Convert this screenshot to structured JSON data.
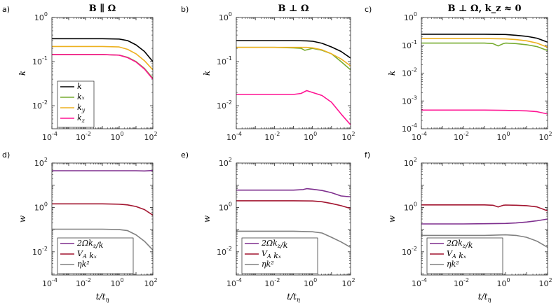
{
  "figure": {
    "xlabel": "t/t_η",
    "x_range": [
      0.0001,
      100
    ],
    "x_ticks": [
      "-4",
      "-2",
      "0",
      "2"
    ],
    "tick_base": "10"
  },
  "chart_data": [
    {
      "panel": "a)",
      "type": "line",
      "title": "B ∥ Ω",
      "ylabel": "k",
      "yscale": "log",
      "ylim": [
        0.003,
        1
      ],
      "y_ticks": [
        "-2",
        "-1",
        "0"
      ],
      "legend": "bottom-left",
      "series": [
        {
          "name": "k",
          "label": "k",
          "color": "#000000",
          "points": [
            [
              -4,
              0.33
            ],
            [
              -2,
              0.33
            ],
            [
              -1,
              0.33
            ],
            [
              0,
              0.325
            ],
            [
              0.5,
              0.3
            ],
            [
              1,
              0.24
            ],
            [
              1.5,
              0.17
            ],
            [
              2,
              0.1
            ]
          ]
        },
        {
          "name": "k_x",
          "label": "kₓ",
          "color": "#77ac30",
          "points": [
            [
              -4,
              0.145
            ],
            [
              -2,
              0.145
            ],
            [
              -1,
              0.145
            ],
            [
              0,
              0.14
            ],
            [
              0.5,
              0.125
            ],
            [
              1,
              0.1
            ],
            [
              1.5,
              0.07
            ],
            [
              2,
              0.042
            ]
          ]
        },
        {
          "name": "k_y",
          "label": "k_y",
          "color": "#edb120",
          "points": [
            [
              -4,
              0.22
            ],
            [
              -2,
              0.22
            ],
            [
              -1,
              0.22
            ],
            [
              0,
              0.215
            ],
            [
              0.5,
              0.19
            ],
            [
              1,
              0.15
            ],
            [
              1.5,
              0.105
            ],
            [
              2,
              0.065
            ]
          ]
        },
        {
          "name": "k_z",
          "label": "k_z",
          "color": "#ff1493",
          "points": [
            [
              -4,
              0.145
            ],
            [
              -2,
              0.145
            ],
            [
              -1,
              0.145
            ],
            [
              0,
              0.14
            ],
            [
              0.5,
              0.123
            ],
            [
              1,
              0.098
            ],
            [
              1.5,
              0.068
            ],
            [
              2,
              0.04
            ]
          ]
        }
      ]
    },
    {
      "panel": "b)",
      "type": "line",
      "title": "B ⊥ Ω",
      "ylabel": "k",
      "yscale": "log",
      "ylim": [
        0.003,
        1
      ],
      "y_ticks": [
        "-2",
        "-1",
        "0"
      ],
      "series": [
        {
          "name": "k",
          "color": "#000000",
          "points": [
            [
              -4,
              0.3
            ],
            [
              -2,
              0.3
            ],
            [
              -1,
              0.3
            ],
            [
              -0.3,
              0.295
            ],
            [
              0,
              0.29
            ],
            [
              0.5,
              0.26
            ],
            [
              1,
              0.215
            ],
            [
              1.5,
              0.17
            ],
            [
              2,
              0.12
            ]
          ]
        },
        {
          "name": "k_x",
          "color": "#77ac30",
          "points": [
            [
              -4,
              0.21
            ],
            [
              -2,
              0.21
            ],
            [
              -1,
              0.205
            ],
            [
              -0.6,
              0.2
            ],
            [
              -0.4,
              0.18
            ],
            [
              -0.2,
              0.19
            ],
            [
              0,
              0.2
            ],
            [
              0.5,
              0.18
            ],
            [
              1,
              0.15
            ],
            [
              1.5,
              0.1
            ],
            [
              2,
              0.065
            ]
          ]
        },
        {
          "name": "k_y",
          "color": "#edb120",
          "points": [
            [
              -4,
              0.21
            ],
            [
              -2,
              0.21
            ],
            [
              -1,
              0.21
            ],
            [
              -0.3,
              0.21
            ],
            [
              0,
              0.205
            ],
            [
              0.5,
              0.185
            ],
            [
              1,
              0.15
            ],
            [
              1.5,
              0.115
            ],
            [
              2,
              0.08
            ]
          ]
        },
        {
          "name": "k_z",
          "color": "#ff1493",
          "points": [
            [
              -4,
              0.018
            ],
            [
              -2,
              0.018
            ],
            [
              -1,
              0.018
            ],
            [
              -0.6,
              0.019
            ],
            [
              -0.3,
              0.022
            ],
            [
              0,
              0.02
            ],
            [
              0.5,
              0.017
            ],
            [
              1,
              0.012
            ],
            [
              1.5,
              0.0065
            ],
            [
              2,
              0.0037
            ]
          ]
        }
      ]
    },
    {
      "panel": "c)",
      "type": "line",
      "title": "B ⊥ Ω, k_z ≈ 0",
      "ylabel": "k",
      "yscale": "log",
      "ylim": [
        0.0001,
        1
      ],
      "y_ticks": [
        "-4",
        "-3",
        "-2",
        "-1",
        "0"
      ],
      "series": [
        {
          "name": "k",
          "color": "#000000",
          "points": [
            [
              -4,
              0.25
            ],
            [
              -2,
              0.25
            ],
            [
              -1,
              0.25
            ],
            [
              0,
              0.245
            ],
            [
              0.5,
              0.23
            ],
            [
              1,
              0.21
            ],
            [
              1.5,
              0.18
            ],
            [
              2,
              0.13
            ]
          ]
        },
        {
          "name": "k_x",
          "color": "#77ac30",
          "points": [
            [
              -4,
              0.12
            ],
            [
              -2,
              0.12
            ],
            [
              -1,
              0.12
            ],
            [
              -0.6,
              0.115
            ],
            [
              -0.35,
              0.095
            ],
            [
              -0.1,
              0.115
            ],
            [
              0,
              0.12
            ],
            [
              0.5,
              0.115
            ],
            [
              1,
              0.105
            ],
            [
              1.5,
              0.09
            ],
            [
              2,
              0.065
            ]
          ]
        },
        {
          "name": "k_y",
          "color": "#edb120",
          "points": [
            [
              -4,
              0.175
            ],
            [
              -2,
              0.175
            ],
            [
              -1,
              0.175
            ],
            [
              0,
              0.17
            ],
            [
              0.5,
              0.16
            ],
            [
              1,
              0.145
            ],
            [
              1.5,
              0.12
            ],
            [
              2,
              0.085
            ]
          ]
        },
        {
          "name": "k_z",
          "color": "#ff1493",
          "points": [
            [
              -4,
              0.00047
            ],
            [
              -2,
              0.00047
            ],
            [
              -1,
              0.00047
            ],
            [
              0,
              0.00046
            ],
            [
              1,
              0.00044
            ],
            [
              1.5,
              0.00041
            ],
            [
              2,
              0.00034
            ]
          ]
        }
      ]
    },
    {
      "panel": "d)",
      "type": "line",
      "ylabel": "w",
      "yscale": "log",
      "ylim": [
        0.0009,
        100
      ],
      "y_ticks": [
        "-2",
        "0",
        "2"
      ],
      "legend": "bottom-left",
      "series": [
        {
          "name": "2Ωk_z/k",
          "label": "2Ωk_z/k",
          "color": "#7e2f8e",
          "points": [
            [
              -4,
              45
            ],
            [
              -2,
              45
            ],
            [
              0,
              45
            ],
            [
              1,
              45
            ],
            [
              1.5,
              44
            ],
            [
              2,
              46
            ]
          ]
        },
        {
          "name": "V_A k_x",
          "label": "V_A kₓ",
          "color": "#a2142f",
          "points": [
            [
              -4,
              1.45
            ],
            [
              -2,
              1.45
            ],
            [
              -1,
              1.45
            ],
            [
              0,
              1.4
            ],
            [
              0.5,
              1.3
            ],
            [
              1,
              1.1
            ],
            [
              1.5,
              0.8
            ],
            [
              2,
              0.45
            ]
          ]
        },
        {
          "name": "ηk²",
          "label": "ηk²",
          "color": "#808080",
          "points": [
            [
              -4,
              0.105
            ],
            [
              -2,
              0.105
            ],
            [
              -1,
              0.105
            ],
            [
              0,
              0.1
            ],
            [
              0.5,
              0.09
            ],
            [
              1,
              0.058
            ],
            [
              1.5,
              0.03
            ],
            [
              2,
              0.012
            ]
          ]
        }
      ]
    },
    {
      "panel": "e)",
      "type": "line",
      "ylabel": "w",
      "yscale": "log",
      "ylim": [
        0.0009,
        100
      ],
      "y_ticks": [
        "-2",
        "0",
        "2"
      ],
      "legend": "bottom-left",
      "series": [
        {
          "name": "2Ωk_z/k",
          "color": "#7e2f8e",
          "points": [
            [
              -4,
              6.0
            ],
            [
              -2,
              6.0
            ],
            [
              -1,
              6.0
            ],
            [
              -0.5,
              6.4
            ],
            [
              -0.3,
              7.0
            ],
            [
              0,
              6.6
            ],
            [
              0.5,
              5.8
            ],
            [
              1,
              4.6
            ],
            [
              1.5,
              3.3
            ],
            [
              2,
              3.0
            ]
          ]
        },
        {
          "name": "V_A k_x",
          "color": "#a2142f",
          "points": [
            [
              -4,
              2.0
            ],
            [
              -2,
              2.0
            ],
            [
              -1,
              2.0
            ],
            [
              0,
              1.95
            ],
            [
              0.5,
              1.8
            ],
            [
              1,
              1.5
            ],
            [
              1.5,
              1.2
            ],
            [
              2,
              0.9
            ]
          ]
        },
        {
          "name": "ηk²",
          "color": "#808080",
          "points": [
            [
              -4,
              0.085
            ],
            [
              -2,
              0.085
            ],
            [
              -1,
              0.085
            ],
            [
              0,
              0.08
            ],
            [
              0.5,
              0.07
            ],
            [
              1,
              0.045
            ],
            [
              1.5,
              0.028
            ],
            [
              2,
              0.016
            ]
          ]
        }
      ]
    },
    {
      "panel": "f)",
      "type": "line",
      "ylabel": "w",
      "yscale": "log",
      "ylim": [
        0.0009,
        100
      ],
      "y_ticks": [
        "-2",
        "0",
        "2"
      ],
      "legend": "bottom-left",
      "series": [
        {
          "name": "2Ωk_z/k",
          "color": "#7e2f8e",
          "points": [
            [
              -4,
              0.18
            ],
            [
              -2,
              0.18
            ],
            [
              -1,
              0.185
            ],
            [
              0,
              0.19
            ],
            [
              0.5,
              0.2
            ],
            [
              1,
              0.22
            ],
            [
              1.5,
              0.25
            ],
            [
              2,
              0.3
            ]
          ]
        },
        {
          "name": "V_A k_x",
          "color": "#a2142f",
          "points": [
            [
              -4,
              1.3
            ],
            [
              -2,
              1.3
            ],
            [
              -1,
              1.3
            ],
            [
              -0.6,
              1.25
            ],
            [
              -0.35,
              1.05
            ],
            [
              -0.1,
              1.25
            ],
            [
              0,
              1.28
            ],
            [
              0.5,
              1.25
            ],
            [
              1,
              1.2
            ],
            [
              1.5,
              1.05
            ],
            [
              2,
              0.7
            ]
          ]
        },
        {
          "name": "ηk²",
          "color": "#808080",
          "points": [
            [
              -4,
              0.055
            ],
            [
              -2,
              0.055
            ],
            [
              -1,
              0.055
            ],
            [
              0,
              0.058
            ],
            [
              0.5,
              0.055
            ],
            [
              1,
              0.045
            ],
            [
              1.5,
              0.03
            ],
            [
              2,
              0.016
            ]
          ]
        }
      ]
    }
  ]
}
